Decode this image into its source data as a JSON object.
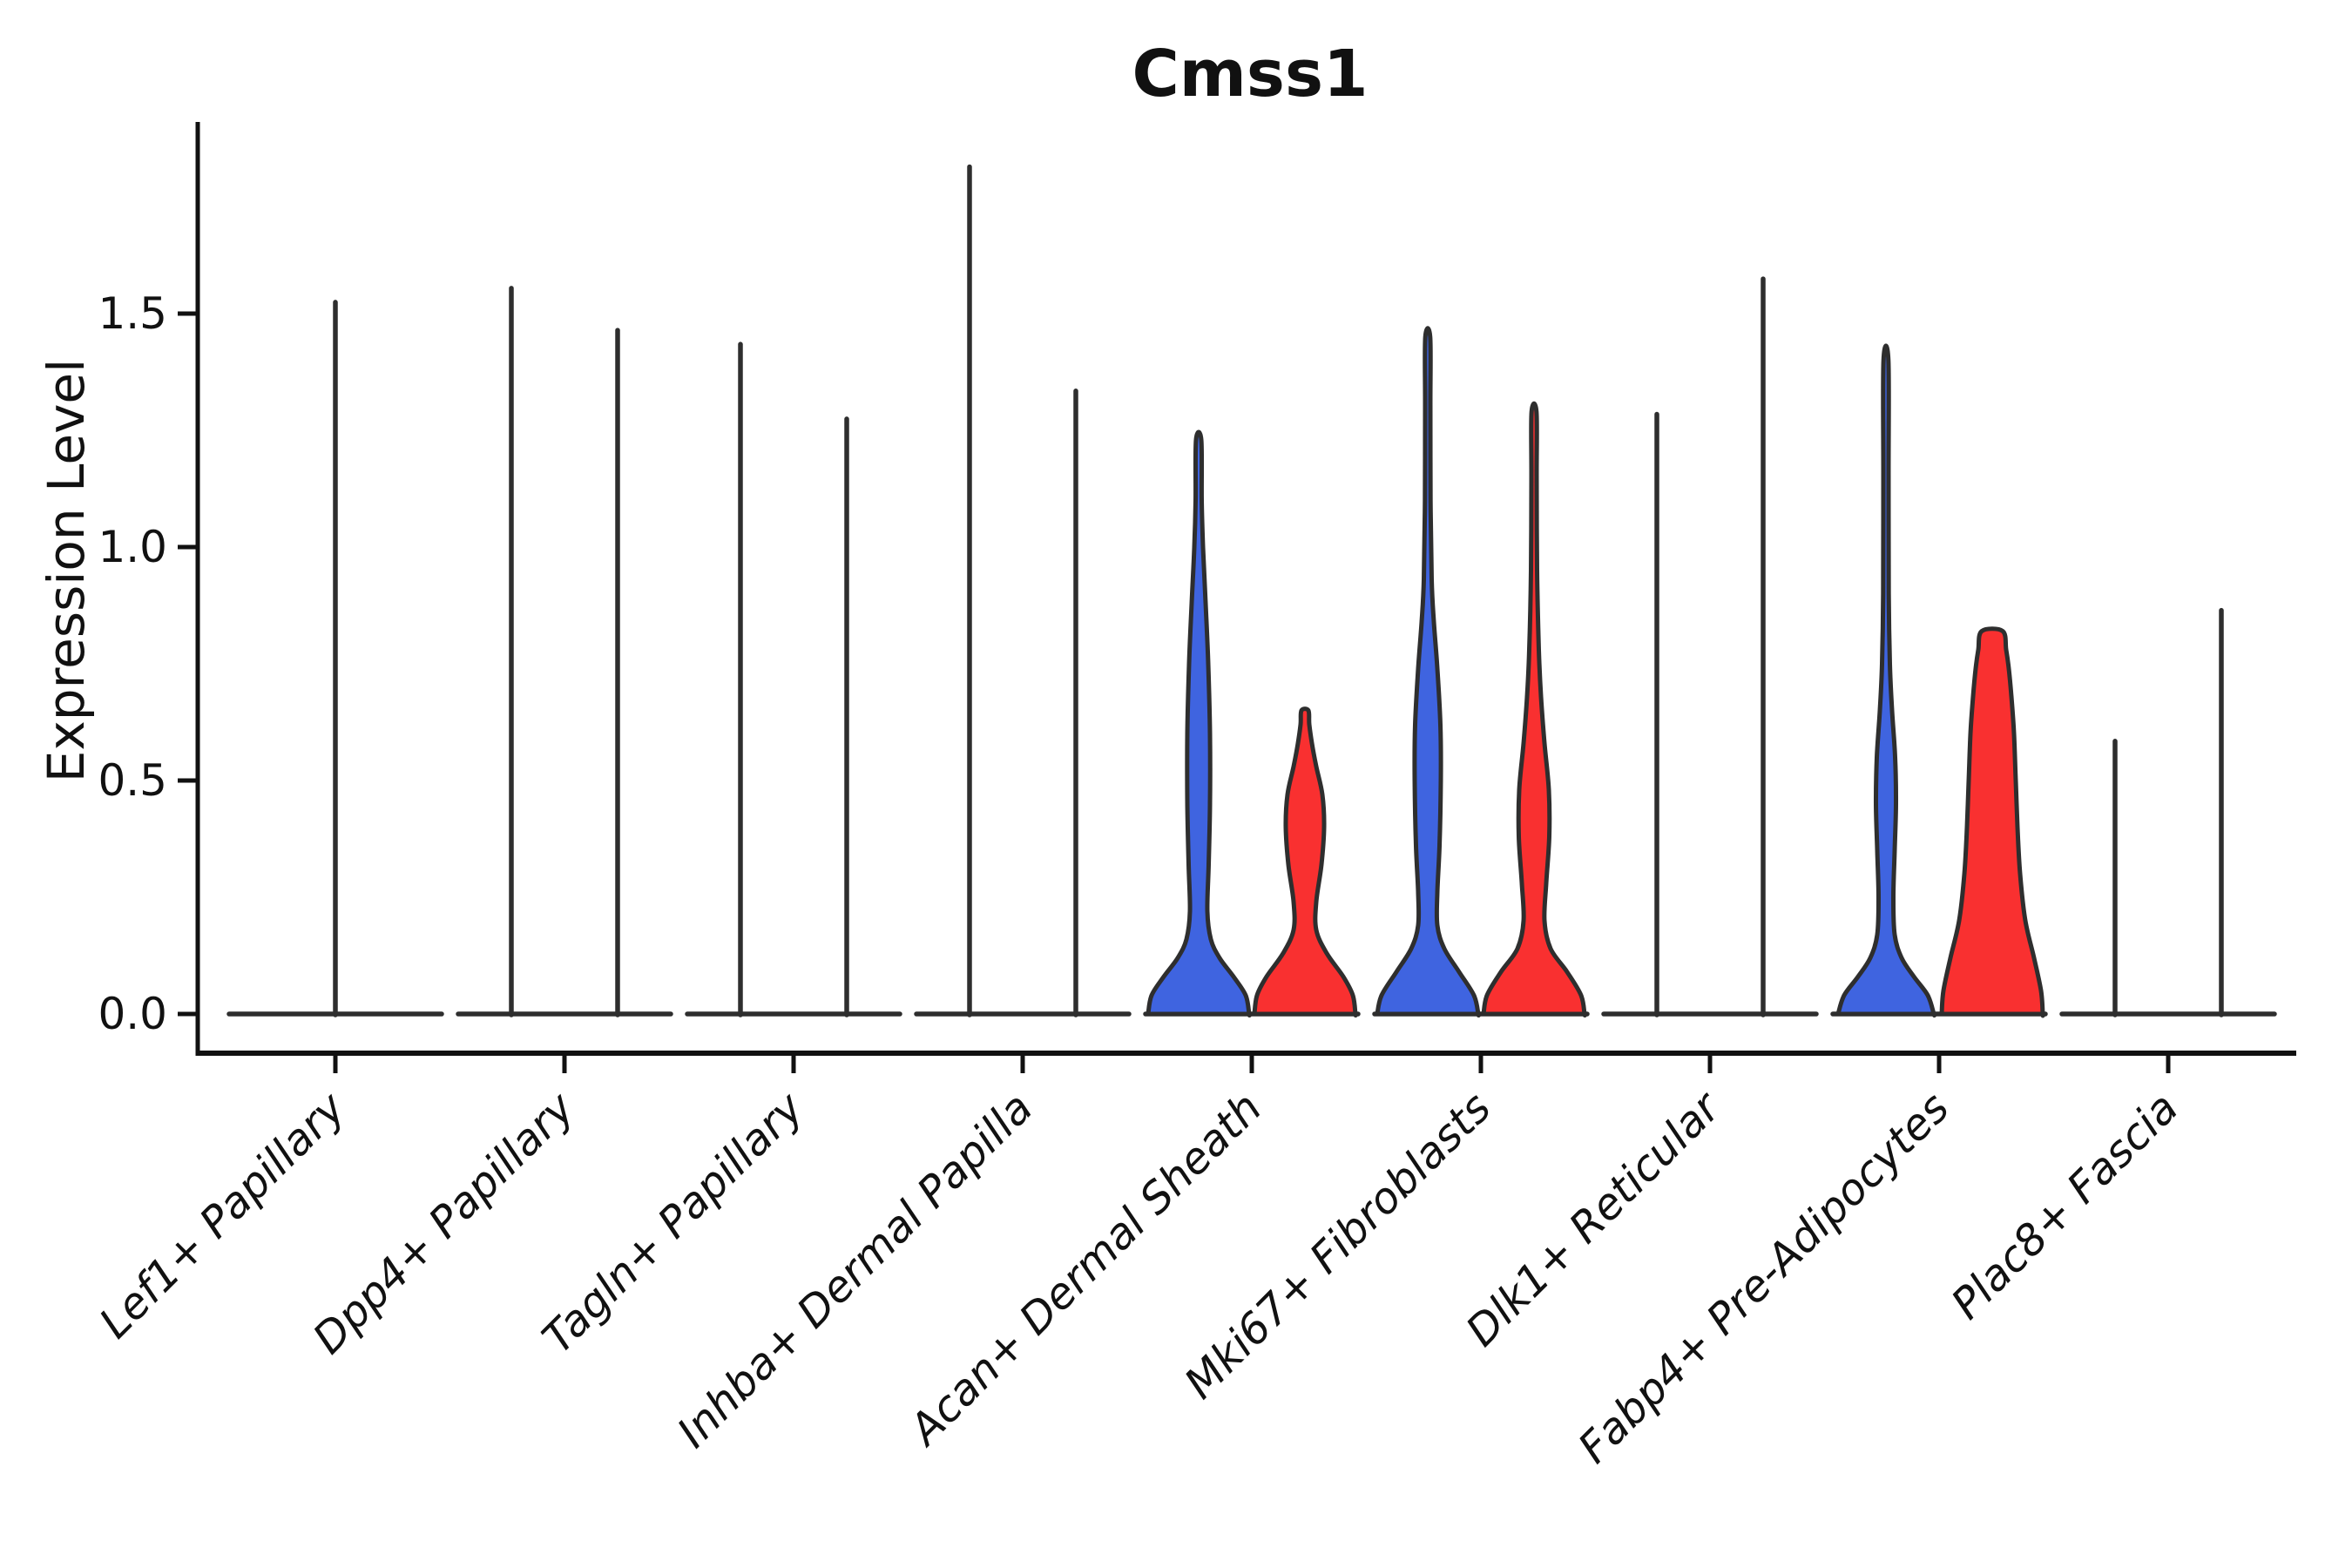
{
  "title": "Cmss1",
  "axes": {
    "ylabel": "Expression Level",
    "ytick_labels": [
      "0.0",
      "0.5",
      "1.0",
      "1.5"
    ]
  },
  "chart_data": {
    "type": "violin",
    "title": "Cmss1",
    "xlabel": "",
    "ylabel": "Expression Level",
    "yticks": [
      0.0,
      0.5,
      1.0,
      1.5
    ],
    "ylim": [
      -0.08,
      1.91
    ],
    "grid": false,
    "legend": "none",
    "split_violin": true,
    "colors": {
      "left_series_fill": "#3F64E0",
      "right_series_fill": "#F93030",
      "outline": "#2E2E2E",
      "axis": "#111111"
    },
    "categories": [
      "Lef1+ Papillary",
      "Dpp4+ Papillary",
      "Tagln+ Papillary",
      "Inhba+ Dermal Papilla",
      "Acan+ Dermal Sheath",
      "Mki67+ Fibroblasts",
      "Dlk1+ Reticular",
      "Fabp4+ Pre-Adipocytes",
      "Plac8+ Fascia"
    ],
    "groups": [
      {
        "category": "Lef1+ Papillary",
        "violins": [
          {
            "side": "center",
            "style": "collapsed",
            "max": 1.53
          }
        ]
      },
      {
        "category": "Dpp4+ Papillary",
        "violins": [
          {
            "side": "left",
            "style": "collapsed",
            "max": 1.56
          },
          {
            "side": "right",
            "style": "collapsed",
            "max": 1.47
          }
        ]
      },
      {
        "category": "Tagln+ Papillary",
        "violins": [
          {
            "side": "left",
            "style": "collapsed",
            "max": 1.44
          },
          {
            "side": "right",
            "style": "collapsed",
            "max": 1.28
          }
        ]
      },
      {
        "category": "Inhba+ Dermal Papilla",
        "violins": [
          {
            "side": "left",
            "style": "collapsed",
            "max": 1.82
          },
          {
            "side": "right",
            "style": "collapsed",
            "max": 1.34
          }
        ]
      },
      {
        "category": "Acan+ Dermal Sheath",
        "violins": [
          {
            "side": "left",
            "style": "filled",
            "fill": "#3F64E0",
            "max": 1.23,
            "profile": [
              [
                0,
                58
              ],
              [
                0.04,
                54
              ],
              [
                0.08,
                40
              ],
              [
                0.12,
                24
              ],
              [
                0.16,
                14
              ],
              [
                0.22,
                10
              ],
              [
                0.32,
                11.5
              ],
              [
                0.45,
                13
              ],
              [
                0.6,
                13
              ],
              [
                0.75,
                11
              ],
              [
                0.88,
                8
              ],
              [
                1.0,
                5
              ],
              [
                1.1,
                3.5
              ],
              [
                1.23,
                3
              ]
            ]
          },
          {
            "side": "right",
            "style": "filled",
            "fill": "#F93030",
            "max": 0.65,
            "profile": [
              [
                0,
                58
              ],
              [
                0.04,
                55
              ],
              [
                0.08,
                44
              ],
              [
                0.13,
                25
              ],
              [
                0.18,
                13
              ],
              [
                0.24,
                13
              ],
              [
                0.32,
                19
              ],
              [
                0.4,
                22
              ],
              [
                0.47,
                20
              ],
              [
                0.53,
                13
              ],
              [
                0.58,
                8
              ],
              [
                0.62,
                5
              ],
              [
                0.65,
                4
              ]
            ]
          }
        ]
      },
      {
        "category": "Mki67+ Fibroblasts",
        "violins": [
          {
            "side": "left",
            "style": "filled",
            "fill": "#3F64E0",
            "max": 1.45,
            "profile": [
              [
                0,
                58
              ],
              [
                0.04,
                53
              ],
              [
                0.09,
                36
              ],
              [
                0.14,
                19
              ],
              [
                0.19,
                11
              ],
              [
                0.26,
                11
              ],
              [
                0.36,
                13.5
              ],
              [
                0.5,
                15
              ],
              [
                0.62,
                14.5
              ],
              [
                0.74,
                11
              ],
              [
                0.84,
                7
              ],
              [
                0.93,
                4.5
              ],
              [
                1.1,
                3.2
              ],
              [
                1.3,
                3
              ],
              [
                1.45,
                2.8
              ]
            ]
          },
          {
            "side": "right",
            "style": "filled",
            "fill": "#F93030",
            "max": 1.29,
            "profile": [
              [
                0,
                58
              ],
              [
                0.04,
                54
              ],
              [
                0.09,
                38
              ],
              [
                0.14,
                19
              ],
              [
                0.2,
                12
              ],
              [
                0.28,
                14
              ],
              [
                0.38,
                17.5
              ],
              [
                0.48,
                17
              ],
              [
                0.58,
                12
              ],
              [
                0.68,
                8
              ],
              [
                0.78,
                5.5
              ],
              [
                0.95,
                3.5
              ],
              [
                1.15,
                3
              ],
              [
                1.29,
                2.8
              ]
            ]
          }
        ]
      },
      {
        "category": "Dlk1+ Reticular",
        "violins": [
          {
            "side": "left",
            "style": "collapsed",
            "max": 1.29
          },
          {
            "side": "right",
            "style": "collapsed",
            "max": 1.58
          }
        ]
      },
      {
        "category": "Fabp4+ Pre-Adipocytes",
        "violins": [
          {
            "side": "left",
            "style": "filled",
            "fill": "#3F64E0",
            "max": 1.4,
            "profile": [
              [
                0,
                55
              ],
              [
                0.04,
                48
              ],
              [
                0.08,
                32
              ],
              [
                0.12,
                18
              ],
              [
                0.17,
                10
              ],
              [
                0.25,
                8.5
              ],
              [
                0.35,
                10
              ],
              [
                0.45,
                11.5
              ],
              [
                0.55,
                10.5
              ],
              [
                0.65,
                7
              ],
              [
                0.75,
                4.5
              ],
              [
                0.9,
                3.2
              ],
              [
                1.15,
                3
              ],
              [
                1.4,
                2.8
              ]
            ]
          },
          {
            "side": "right",
            "style": "filled",
            "fill": "#F93030",
            "max": 0.82,
            "profile": [
              [
                0,
                58
              ],
              [
                0.05,
                56
              ],
              [
                0.12,
                48
              ],
              [
                0.2,
                38
              ],
              [
                0.3,
                32
              ],
              [
                0.4,
                29
              ],
              [
                0.5,
                27
              ],
              [
                0.6,
                25
              ],
              [
                0.68,
                22
              ],
              [
                0.74,
                19
              ],
              [
                0.78,
                16
              ],
              [
                0.82,
                12
              ]
            ]
          }
        ]
      },
      {
        "category": "Plac8+ Fascia",
        "violins": [
          {
            "side": "left",
            "style": "collapsed",
            "max": 0.59
          },
          {
            "side": "right",
            "style": "collapsed",
            "max": 0.87
          }
        ]
      }
    ]
  }
}
